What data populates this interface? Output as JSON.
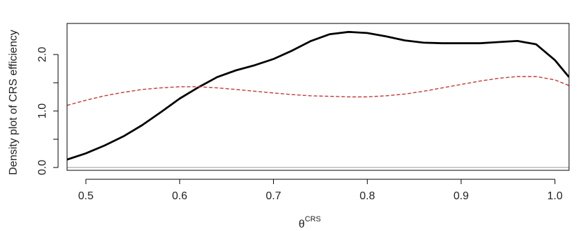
{
  "chart_data": {
    "type": "line",
    "title": "",
    "ylabel": "Density plot of CRS efficiency",
    "xlabel_main": "θ",
    "xlabel_sup": "CRS",
    "xlim": [
      0.48,
      1.015
    ],
    "ylim": [
      -0.05,
      2.55
    ],
    "x_ticks": [
      0.5,
      0.6,
      0.7,
      0.8,
      0.9,
      1.0
    ],
    "x_tick_labels": [
      "0.5",
      "0.6",
      "0.7",
      "0.8",
      "0.9",
      "1.0"
    ],
    "y_ticks": [
      0.0,
      0.5,
      1.0,
      1.5,
      2.0
    ],
    "y_tick_labels": [
      "0.0",
      "",
      "1.0",
      "",
      "2.0"
    ],
    "baseline": 0,
    "baseline_color": "#999999",
    "legend": "none",
    "grid": false,
    "series": [
      {
        "color": "#000000",
        "dashed": false,
        "x": [
          0.48,
          0.5,
          0.52,
          0.54,
          0.56,
          0.58,
          0.6,
          0.62,
          0.64,
          0.66,
          0.68,
          0.7,
          0.72,
          0.74,
          0.76,
          0.78,
          0.8,
          0.82,
          0.84,
          0.86,
          0.88,
          0.9,
          0.92,
          0.94,
          0.96,
          0.98,
          1.0,
          1.015
        ],
        "y": [
          0.14,
          0.25,
          0.39,
          0.55,
          0.75,
          0.98,
          1.22,
          1.42,
          1.6,
          1.72,
          1.81,
          1.92,
          2.07,
          2.24,
          2.36,
          2.4,
          2.38,
          2.32,
          2.25,
          2.21,
          2.2,
          2.2,
          2.2,
          2.22,
          2.24,
          2.18,
          1.9,
          1.6
        ]
      },
      {
        "color": "#cc3333",
        "dashed": true,
        "x": [
          0.48,
          0.5,
          0.52,
          0.54,
          0.56,
          0.58,
          0.6,
          0.62,
          0.64,
          0.66,
          0.68,
          0.7,
          0.72,
          0.74,
          0.76,
          0.78,
          0.8,
          0.82,
          0.84,
          0.86,
          0.88,
          0.9,
          0.92,
          0.94,
          0.96,
          0.98,
          1.0,
          1.015
        ],
        "y": [
          1.1,
          1.19,
          1.27,
          1.33,
          1.38,
          1.41,
          1.43,
          1.43,
          1.41,
          1.38,
          1.35,
          1.32,
          1.29,
          1.27,
          1.26,
          1.25,
          1.25,
          1.27,
          1.3,
          1.35,
          1.41,
          1.47,
          1.53,
          1.58,
          1.61,
          1.61,
          1.55,
          1.45
        ]
      }
    ]
  }
}
